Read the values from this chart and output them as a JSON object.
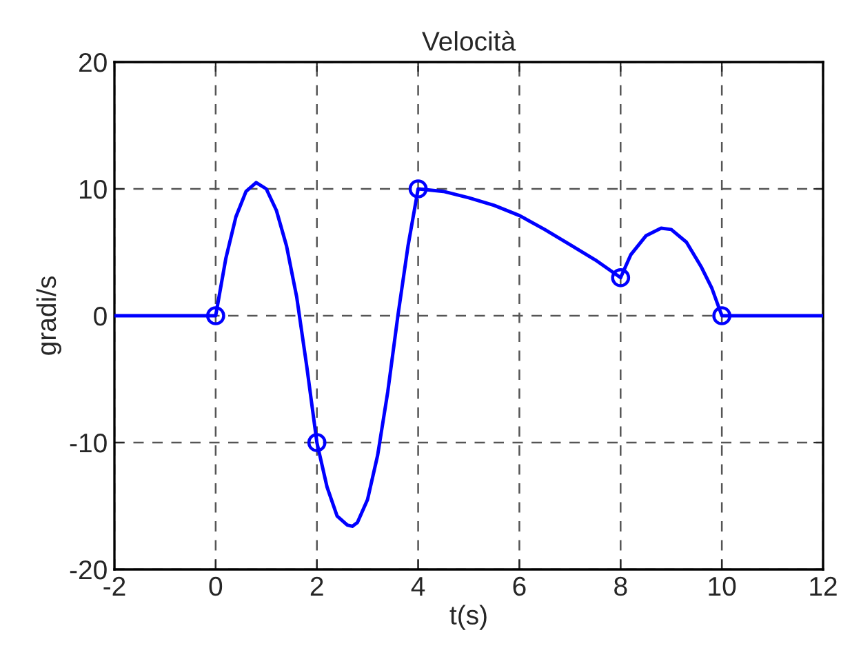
{
  "chart_data": {
    "type": "line",
    "title": "Velocità",
    "xlabel": "t(s)",
    "ylabel": "gradi/s",
    "xlim": [
      -2,
      12
    ],
    "xticks": [
      -2,
      0,
      2,
      4,
      6,
      8,
      10,
      12
    ],
    "ylim": [
      -20,
      20
    ],
    "yticks": [
      -20,
      -10,
      0,
      10,
      20
    ],
    "grid": true,
    "legend": false,
    "series": [
      {
        "color": "#0000ff",
        "marker": "none",
        "x": [
          -2,
          0,
          0.2,
          0.4,
          0.6,
          0.8,
          1.0,
          1.2,
          1.4,
          1.6,
          1.8,
          2.0,
          2.2,
          2.4,
          2.6,
          2.7,
          2.8,
          3.0,
          3.2,
          3.4,
          3.6,
          3.8,
          4.0,
          4.5,
          5.0,
          5.5,
          6.0,
          6.5,
          7.0,
          7.5,
          8.0,
          8.2,
          8.5,
          8.8,
          9.0,
          9.3,
          9.6,
          9.8,
          10,
          12
        ],
        "values": [
          0,
          0,
          4.5,
          7.8,
          9.8,
          10.5,
          10.0,
          8.3,
          5.5,
          1.5,
          -4,
          -10,
          -13.5,
          -15.8,
          -16.5,
          -16.6,
          -16.3,
          -14.5,
          -11,
          -6,
          0,
          5.5,
          10,
          9.8,
          9.3,
          8.7,
          7.9,
          6.8,
          5.6,
          4.4,
          3,
          4.8,
          6.3,
          6.9,
          6.8,
          5.8,
          3.8,
          2.2,
          0,
          0
        ]
      },
      {
        "type": "scatter",
        "color": "#0000ff",
        "marker": "circle",
        "x": [
          0,
          2,
          4,
          8,
          10
        ],
        "values": [
          0,
          -10,
          10,
          3,
          0
        ]
      }
    ]
  }
}
